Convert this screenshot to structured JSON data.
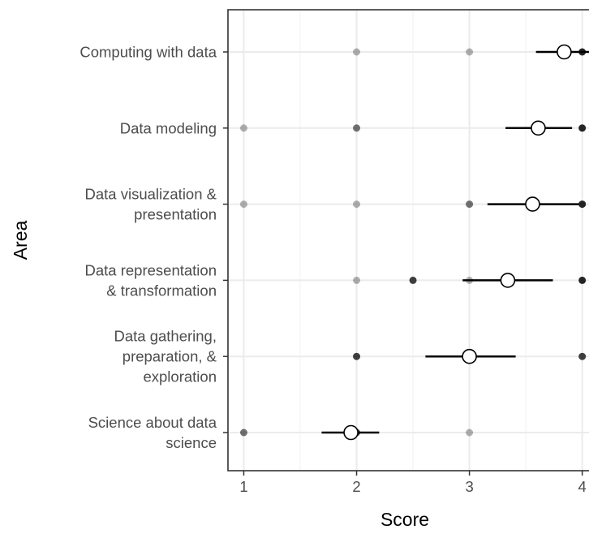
{
  "chart_data": {
    "type": "scatter",
    "xlabel": "Score",
    "ylabel": "Area",
    "xlim": [
      0.86,
      4.06
    ],
    "x_ticks": [
      1,
      2,
      3,
      4
    ],
    "x_tick_labels": [
      "1",
      "2",
      "3",
      "4"
    ],
    "grid": true,
    "categories": [
      {
        "label_lines": [
          "Computing with data"
        ],
        "mean": 3.84,
        "ci": [
          3.59,
          4.08
        ],
        "points": [
          {
            "x": 2,
            "alpha": 0.3
          },
          {
            "x": 3,
            "alpha": 0.3
          },
          {
            "x": 4,
            "alpha": 0.85
          }
        ]
      },
      {
        "label_lines": [
          "Data modeling"
        ],
        "mean": 3.61,
        "ci": [
          3.32,
          3.91
        ],
        "points": [
          {
            "x": 1,
            "alpha": 0.3
          },
          {
            "x": 2,
            "alpha": 0.55
          },
          {
            "x": 4,
            "alpha": 0.85
          }
        ]
      },
      {
        "label_lines": [
          "Data visualization &",
          "presentation"
        ],
        "mean": 3.56,
        "ci": [
          3.16,
          3.97
        ],
        "points": [
          {
            "x": 1,
            "alpha": 0.3
          },
          {
            "x": 2,
            "alpha": 0.3
          },
          {
            "x": 3,
            "alpha": 0.55
          },
          {
            "x": 4,
            "alpha": 0.85
          }
        ]
      },
      {
        "label_lines": [
          "Data representation",
          "& transformation"
        ],
        "mean": 3.34,
        "ci": [
          2.94,
          3.74
        ],
        "points": [
          {
            "x": 2,
            "alpha": 0.3
          },
          {
            "x": 2.5,
            "alpha": 0.75
          },
          {
            "x": 3,
            "alpha": 0.3
          },
          {
            "x": 4,
            "alpha": 0.85
          }
        ]
      },
      {
        "label_lines": [
          "Data gathering,",
          "preparation, &",
          "exploration"
        ],
        "mean": 3.0,
        "ci": [
          2.61,
          3.41
        ],
        "points": [
          {
            "x": 2,
            "alpha": 0.75
          },
          {
            "x": 3,
            "alpha": 0.75
          },
          {
            "x": 4,
            "alpha": 0.75
          }
        ]
      },
      {
        "label_lines": [
          "Science about data",
          "science"
        ],
        "mean": 1.95,
        "ci": [
          1.69,
          2.2
        ],
        "points": [
          {
            "x": 1,
            "alpha": 0.55
          },
          {
            "x": 2,
            "alpha": 0.75
          },
          {
            "x": 3,
            "alpha": 0.3
          }
        ]
      }
    ],
    "colors": {
      "points": "#000000",
      "mean_fill": "#ffffff",
      "mean_stroke": "#000000",
      "error_bar": "#000000",
      "grid_major": "#ebebeb",
      "grid_minor": "#f3f3f3",
      "panel_border": "#333333",
      "label": "#4d4d4d"
    }
  }
}
